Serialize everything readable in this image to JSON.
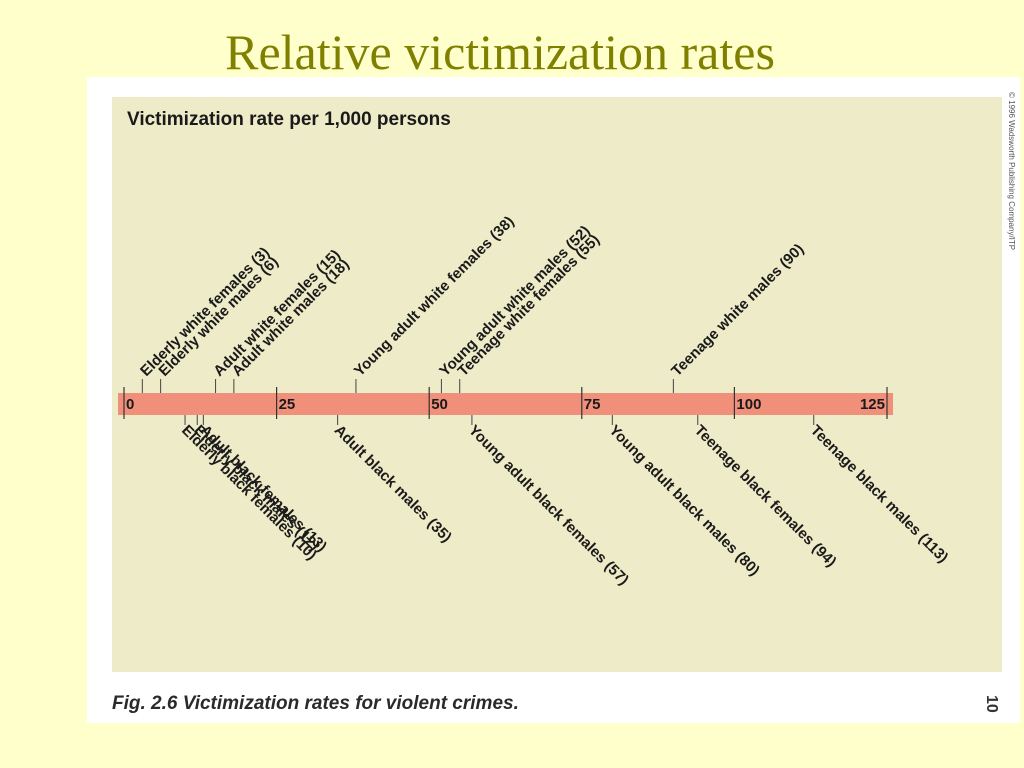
{
  "slide": {
    "title": "Relative victimization rates"
  },
  "figure": {
    "caption": "Fig. 2.6  Victimization rates for violent crimes.",
    "page_number": "10",
    "copyright": "© 1996 Wadsworth Publishing Company/ITP",
    "panel_color": "#EEEBC8",
    "bar_color": "#F0907A"
  },
  "chart_data": {
    "type": "number-line",
    "title": "Victimization rate per 1,000 persons",
    "xlim": [
      0,
      125
    ],
    "ticks": [
      0,
      25,
      50,
      75,
      100,
      125
    ],
    "tick_labels": [
      "0",
      "25",
      "50",
      "75",
      "100",
      "125"
    ],
    "above": [
      {
        "label": "Elderly white females (3)",
        "value": 3
      },
      {
        "label": "Elderly white males (6)",
        "value": 6
      },
      {
        "label": "Adult white females (15)",
        "value": 15
      },
      {
        "label": "Adult white males (18)",
        "value": 18
      },
      {
        "label": "Young adult white females (38)",
        "value": 38
      },
      {
        "label": "Young adult white males (52)",
        "value": 52
      },
      {
        "label": "Teenage white females (55)",
        "value": 55
      },
      {
        "label": "Teenage white males (90)",
        "value": 90
      }
    ],
    "below": [
      {
        "label": "Elderly black females (10)",
        "value": 10
      },
      {
        "label": "Elderly black males (12)",
        "value": 12
      },
      {
        "label": "Adult black females (13)",
        "value": 13
      },
      {
        "label": "Adult black males (35)",
        "value": 35
      },
      {
        "label": "Young adult black females (57)",
        "value": 57
      },
      {
        "label": "Young adult black males (80)",
        "value": 80
      },
      {
        "label": "Teenage black females (94)",
        "value": 94
      },
      {
        "label": "Teenage black males (113)",
        "value": 113
      }
    ]
  }
}
